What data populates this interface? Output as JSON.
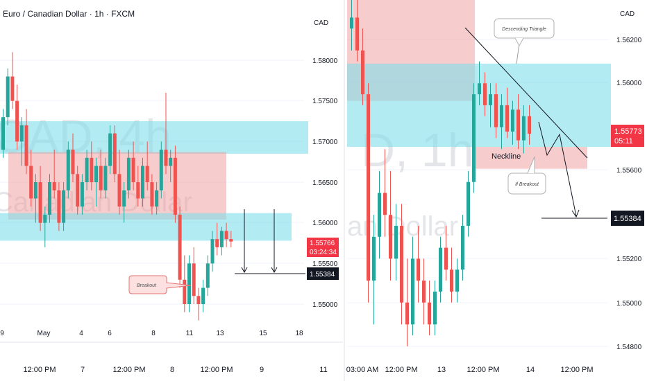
{
  "colors": {
    "up": "#26a69a",
    "down": "#ef5350",
    "resistance_zone": "#ef9a9a",
    "support_zone": "#80deea",
    "price_tag": "#f23645",
    "axis_text": "#131722",
    "grid": "#f0f3fa",
    "divider": "#d1d4dc"
  },
  "chart_data": [
    {
      "type": "candlestick",
      "title": "Euro / Canadian Dollar · 1h · FXCM",
      "currency": "CAD",
      "watermark": [
        "CAD, 4h",
        "Canadian Dollar"
      ],
      "y_ticks": [
        "1.58000",
        "1.57500",
        "1.57000",
        "1.56500",
        "1.56000",
        "1.55500",
        "1.55000"
      ],
      "ylim": [
        1.5455,
        1.5855
      ],
      "upper_x_ticks": [
        "9",
        "May",
        "4",
        "6",
        "8",
        "11",
        "13",
        "15",
        "18"
      ],
      "lower_x_ticks": [
        "12:00 PM",
        "7",
        "12:00 PM",
        "8",
        "12:00 PM",
        "9",
        "11"
      ],
      "zones": [
        {
          "kind": "support",
          "from": 1.5685,
          "to": 1.5725
        },
        {
          "kind": "resistance",
          "from": 1.5604,
          "to": 1.5687
        },
        {
          "kind": "support",
          "from": 1.5578,
          "to": 1.5612
        }
      ],
      "last_price": "1.55766",
      "countdown": "03:24:34",
      "target_price": "1.55384",
      "target_value": 1.55384,
      "annotations": [
        "Breakout"
      ],
      "candles": [
        [
          1.569,
          1.574,
          1.568,
          1.573
        ],
        [
          1.573,
          1.579,
          1.572,
          1.578
        ],
        [
          1.578,
          1.581,
          1.574,
          1.575
        ],
        [
          1.575,
          1.577,
          1.569,
          1.57
        ],
        [
          1.57,
          1.573,
          1.567,
          1.572
        ],
        [
          1.572,
          1.574,
          1.566,
          1.567
        ],
        [
          1.567,
          1.569,
          1.562,
          1.563
        ],
        [
          1.563,
          1.566,
          1.56,
          1.565
        ],
        [
          1.565,
          1.567,
          1.559,
          1.56
        ],
        [
          1.56,
          1.562,
          1.557,
          1.561
        ],
        [
          1.561,
          1.566,
          1.56,
          1.565
        ],
        [
          1.565,
          1.569,
          1.563,
          1.564
        ],
        [
          1.564,
          1.565,
          1.559,
          1.56
        ],
        [
          1.56,
          1.565,
          1.559,
          1.564
        ],
        [
          1.564,
          1.57,
          1.563,
          1.569
        ],
        [
          1.569,
          1.571,
          1.565,
          1.566
        ],
        [
          1.566,
          1.567,
          1.561,
          1.562
        ],
        [
          1.562,
          1.566,
          1.561,
          1.565
        ],
        [
          1.565,
          1.569,
          1.564,
          1.568
        ],
        [
          1.568,
          1.57,
          1.564,
          1.565
        ],
        [
          1.565,
          1.568,
          1.562,
          1.567
        ],
        [
          1.567,
          1.569,
          1.563,
          1.564
        ],
        [
          1.564,
          1.568,
          1.563,
          1.567
        ],
        [
          1.567,
          1.572,
          1.566,
          1.571
        ],
        [
          1.571,
          1.572,
          1.565,
          1.566
        ],
        [
          1.566,
          1.569,
          1.561,
          1.562
        ],
        [
          1.562,
          1.565,
          1.56,
          1.564
        ],
        [
          1.564,
          1.569,
          1.563,
          1.568
        ],
        [
          1.568,
          1.57,
          1.564,
          1.565
        ],
        [
          1.565,
          1.567,
          1.562,
          1.563
        ],
        [
          1.563,
          1.568,
          1.562,
          1.567
        ],
        [
          1.567,
          1.57,
          1.564,
          1.565
        ],
        [
          1.565,
          1.566,
          1.561,
          1.562
        ],
        [
          1.562,
          1.565,
          1.561,
          1.564
        ],
        [
          1.564,
          1.57,
          1.563,
          1.569
        ],
        [
          1.569,
          1.576,
          1.566,
          1.567
        ],
        [
          1.567,
          1.569,
          1.565,
          1.568
        ],
        [
          1.568,
          1.5695,
          1.56,
          1.561
        ],
        [
          1.561,
          1.562,
          1.552,
          1.553
        ],
        [
          1.553,
          1.556,
          1.549,
          1.55
        ],
        [
          1.55,
          1.556,
          1.549,
          1.555
        ],
        [
          1.555,
          1.557,
          1.55,
          1.551
        ],
        [
          1.551,
          1.552,
          1.548,
          1.55
        ],
        [
          1.55,
          1.553,
          1.549,
          1.552
        ],
        [
          1.552,
          1.556,
          1.551,
          1.555
        ],
        [
          1.555,
          1.559,
          1.554,
          1.558
        ],
        [
          1.558,
          1.56,
          1.556,
          1.557
        ],
        [
          1.557,
          1.5595,
          1.556,
          1.559
        ],
        [
          1.559,
          1.56,
          1.557,
          1.558
        ],
        [
          1.558,
          1.559,
          1.557,
          1.5577
        ]
      ]
    },
    {
      "type": "candlestick",
      "currency": "CAD",
      "watermark": [
        "D, 1h",
        "an Dollar"
      ],
      "y_ticks": [
        "1.56200",
        "1.56000",
        "1.55600",
        "1.55200",
        "1.55000",
        "1.54800"
      ],
      "ylim": [
        1.547,
        1.564
      ],
      "x_ticks": [
        "03:00 AM",
        "12:00 PM",
        "13",
        "12:00 PM",
        "14",
        "12:00 PM"
      ],
      "zones": [
        {
          "kind": "resistance",
          "from": 1.5592,
          "to": 1.566
        },
        {
          "kind": "support",
          "from": 1.5571,
          "to": 1.5609
        },
        {
          "kind": "resistance",
          "from": 1.5561,
          "to": 1.5571
        }
      ],
      "last_price": "1.55773",
      "countdown": "05:11",
      "target_price": "1.55384",
      "target_value": 1.55384,
      "annotations": [
        "Descending Triangle",
        "Neckline",
        "If Breakout"
      ],
      "candles": [
        [
          1.5625,
          1.564,
          1.5615,
          1.563
        ],
        [
          1.563,
          1.564,
          1.561,
          1.5615
        ],
        [
          1.5615,
          1.5625,
          1.559,
          1.5595
        ],
        [
          1.5595,
          1.56,
          1.55,
          1.551
        ],
        [
          1.551,
          1.554,
          1.549,
          1.553
        ],
        [
          1.553,
          1.556,
          1.552,
          1.555
        ],
        [
          1.555,
          1.557,
          1.553,
          1.554
        ],
        [
          1.554,
          1.556,
          1.551,
          1.552
        ],
        [
          1.552,
          1.5545,
          1.551,
          1.5535
        ],
        [
          1.5535,
          1.5545,
          1.549,
          1.55
        ],
        [
          1.55,
          1.552,
          1.548,
          1.549
        ],
        [
          1.549,
          1.553,
          1.5485,
          1.552
        ],
        [
          1.552,
          1.5535,
          1.55,
          1.551
        ],
        [
          1.551,
          1.552,
          1.549,
          1.55
        ],
        [
          1.55,
          1.551,
          1.5485,
          1.549
        ],
        [
          1.549,
          1.551,
          1.5485,
          1.5505
        ],
        [
          1.5505,
          1.553,
          1.55,
          1.5525
        ],
        [
          1.5525,
          1.5535,
          1.551,
          1.5515
        ],
        [
          1.5515,
          1.5525,
          1.55,
          1.5505
        ],
        [
          1.5505,
          1.552,
          1.55,
          1.5515
        ],
        [
          1.5515,
          1.554,
          1.551,
          1.5535
        ],
        [
          1.5535,
          1.556,
          1.553,
          1.5555
        ],
        [
          1.5555,
          1.56,
          1.555,
          1.5595
        ],
        [
          1.5595,
          1.561,
          1.559,
          1.56
        ],
        [
          1.56,
          1.5605,
          1.5585,
          1.559
        ],
        [
          1.559,
          1.56,
          1.558,
          1.5595
        ],
        [
          1.5595,
          1.56,
          1.5575,
          1.558
        ],
        [
          1.558,
          1.5595,
          1.557,
          1.559
        ],
        [
          1.559,
          1.5598,
          1.5575,
          1.5578
        ],
        [
          1.5578,
          1.5592,
          1.5572,
          1.5588
        ],
        [
          1.5588,
          1.5595,
          1.557,
          1.5574
        ],
        [
          1.5574,
          1.559,
          1.5568,
          1.5585
        ],
        [
          1.5585,
          1.559,
          1.5572,
          1.5577
        ]
      ]
    }
  ]
}
